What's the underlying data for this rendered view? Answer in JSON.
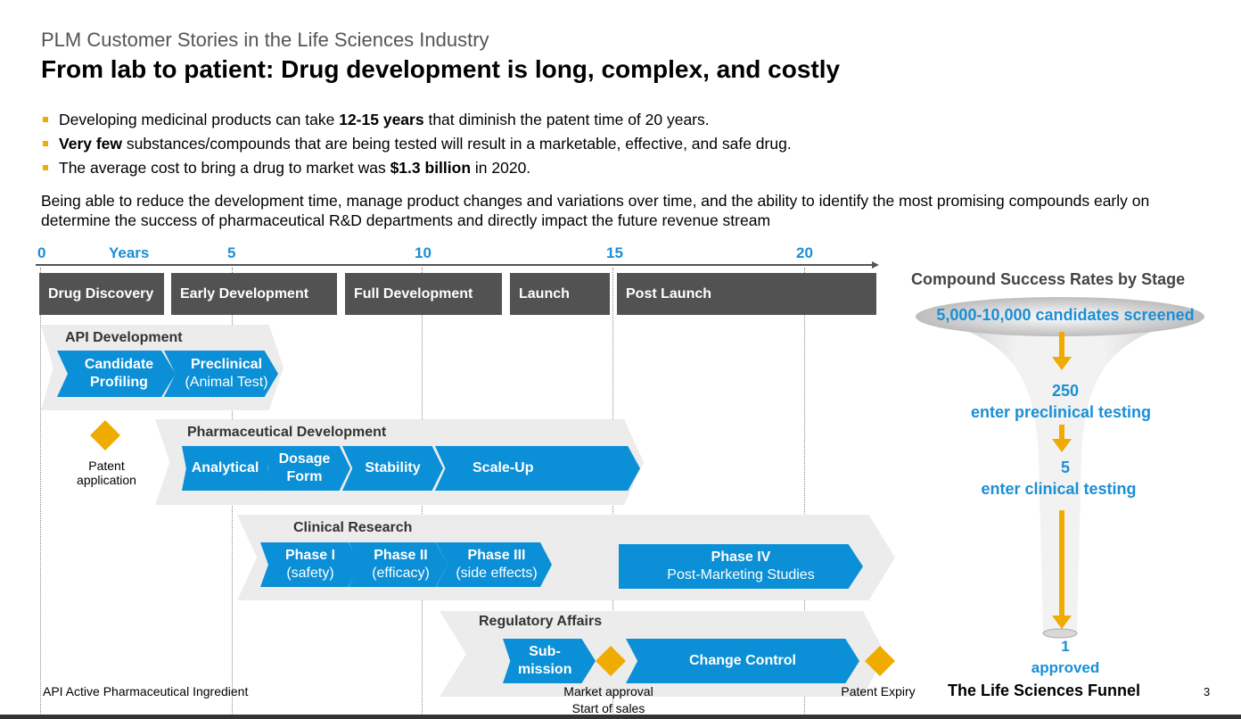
{
  "header": {
    "subtitle": "PLM Customer Stories in the Life Sciences Industry",
    "title": "From lab to patient: Drug development is long, complex, and costly"
  },
  "bullets": [
    {
      "pre": "Developing medicinal products can take ",
      "bold": "12-15 years",
      "post": " that diminish the patent time of 20 years."
    },
    {
      "pre": "",
      "bold": "Very few",
      "post": " substances/compounds that are being tested will result in a marketable, effective, and safe drug."
    },
    {
      "pre": "The average cost to bring a drug to market was ",
      "bold": "$1.3 billion",
      "post": " in 2020."
    }
  ],
  "paragraph": "Being able to reduce the development time, manage product changes and variations over time, and the ability to identify the most promising compounds early on determine the success of pharmaceutical R&D departments and directly impact the future revenue stream",
  "timeline": {
    "axis": {
      "start": "0",
      "label": "Years",
      "t5": "5",
      "t10": "10",
      "t15": "15",
      "t20": "20"
    },
    "stages": {
      "discovery": "Drug Discovery",
      "early": "Early Development",
      "full": "Full Development",
      "launch": "Launch",
      "post": "Post Launch"
    },
    "groups": {
      "api": {
        "label": "API Development",
        "candidate": "Candidate Profiling",
        "preclinical_title": "Preclinical",
        "preclinical_sub": "(Animal Test)"
      },
      "pharma": {
        "label": "Pharmaceutical Development",
        "analytical": "Analytical",
        "dosage": "Dosage Form",
        "stability": "Stability",
        "scaleup": "Scale-Up"
      },
      "clinical": {
        "label": "Clinical Research",
        "phase1_title": "Phase I",
        "phase1_sub": "(safety)",
        "phase2_title": "Phase II",
        "phase2_sub": "(efficacy)",
        "phase3_title": "Phase III",
        "phase3_sub": "(side effects)",
        "phase4_title": "Phase IV",
        "phase4_sub": "Post-Marketing Studies"
      },
      "regulatory": {
        "label": "Regulatory Affairs",
        "submission": "Sub- mission",
        "change": "Change Control"
      }
    },
    "milestones": {
      "patent_app": "Patent application",
      "market_approval": "Market approval",
      "start_sales": "Start of sales",
      "patent_expiry": "Patent Expiry"
    },
    "footnote": "API Active Pharmaceutical Ingredient"
  },
  "funnel": {
    "title": "Compound Success Rates by Stage",
    "screened": "5,000-10,000 candidates screened",
    "n250": "250",
    "preclinical": "enter preclinical testing",
    "n5": "5",
    "clinical": "enter clinical testing",
    "n1": "1",
    "approved": "approved",
    "caption": "The Life Sciences Funnel"
  },
  "page_number": "3",
  "colors": {
    "accent_blue": "#0b8fd6",
    "orange": "#f0ab00",
    "stage_gray": "#525252",
    "label_blue": "#1a8fd6"
  }
}
